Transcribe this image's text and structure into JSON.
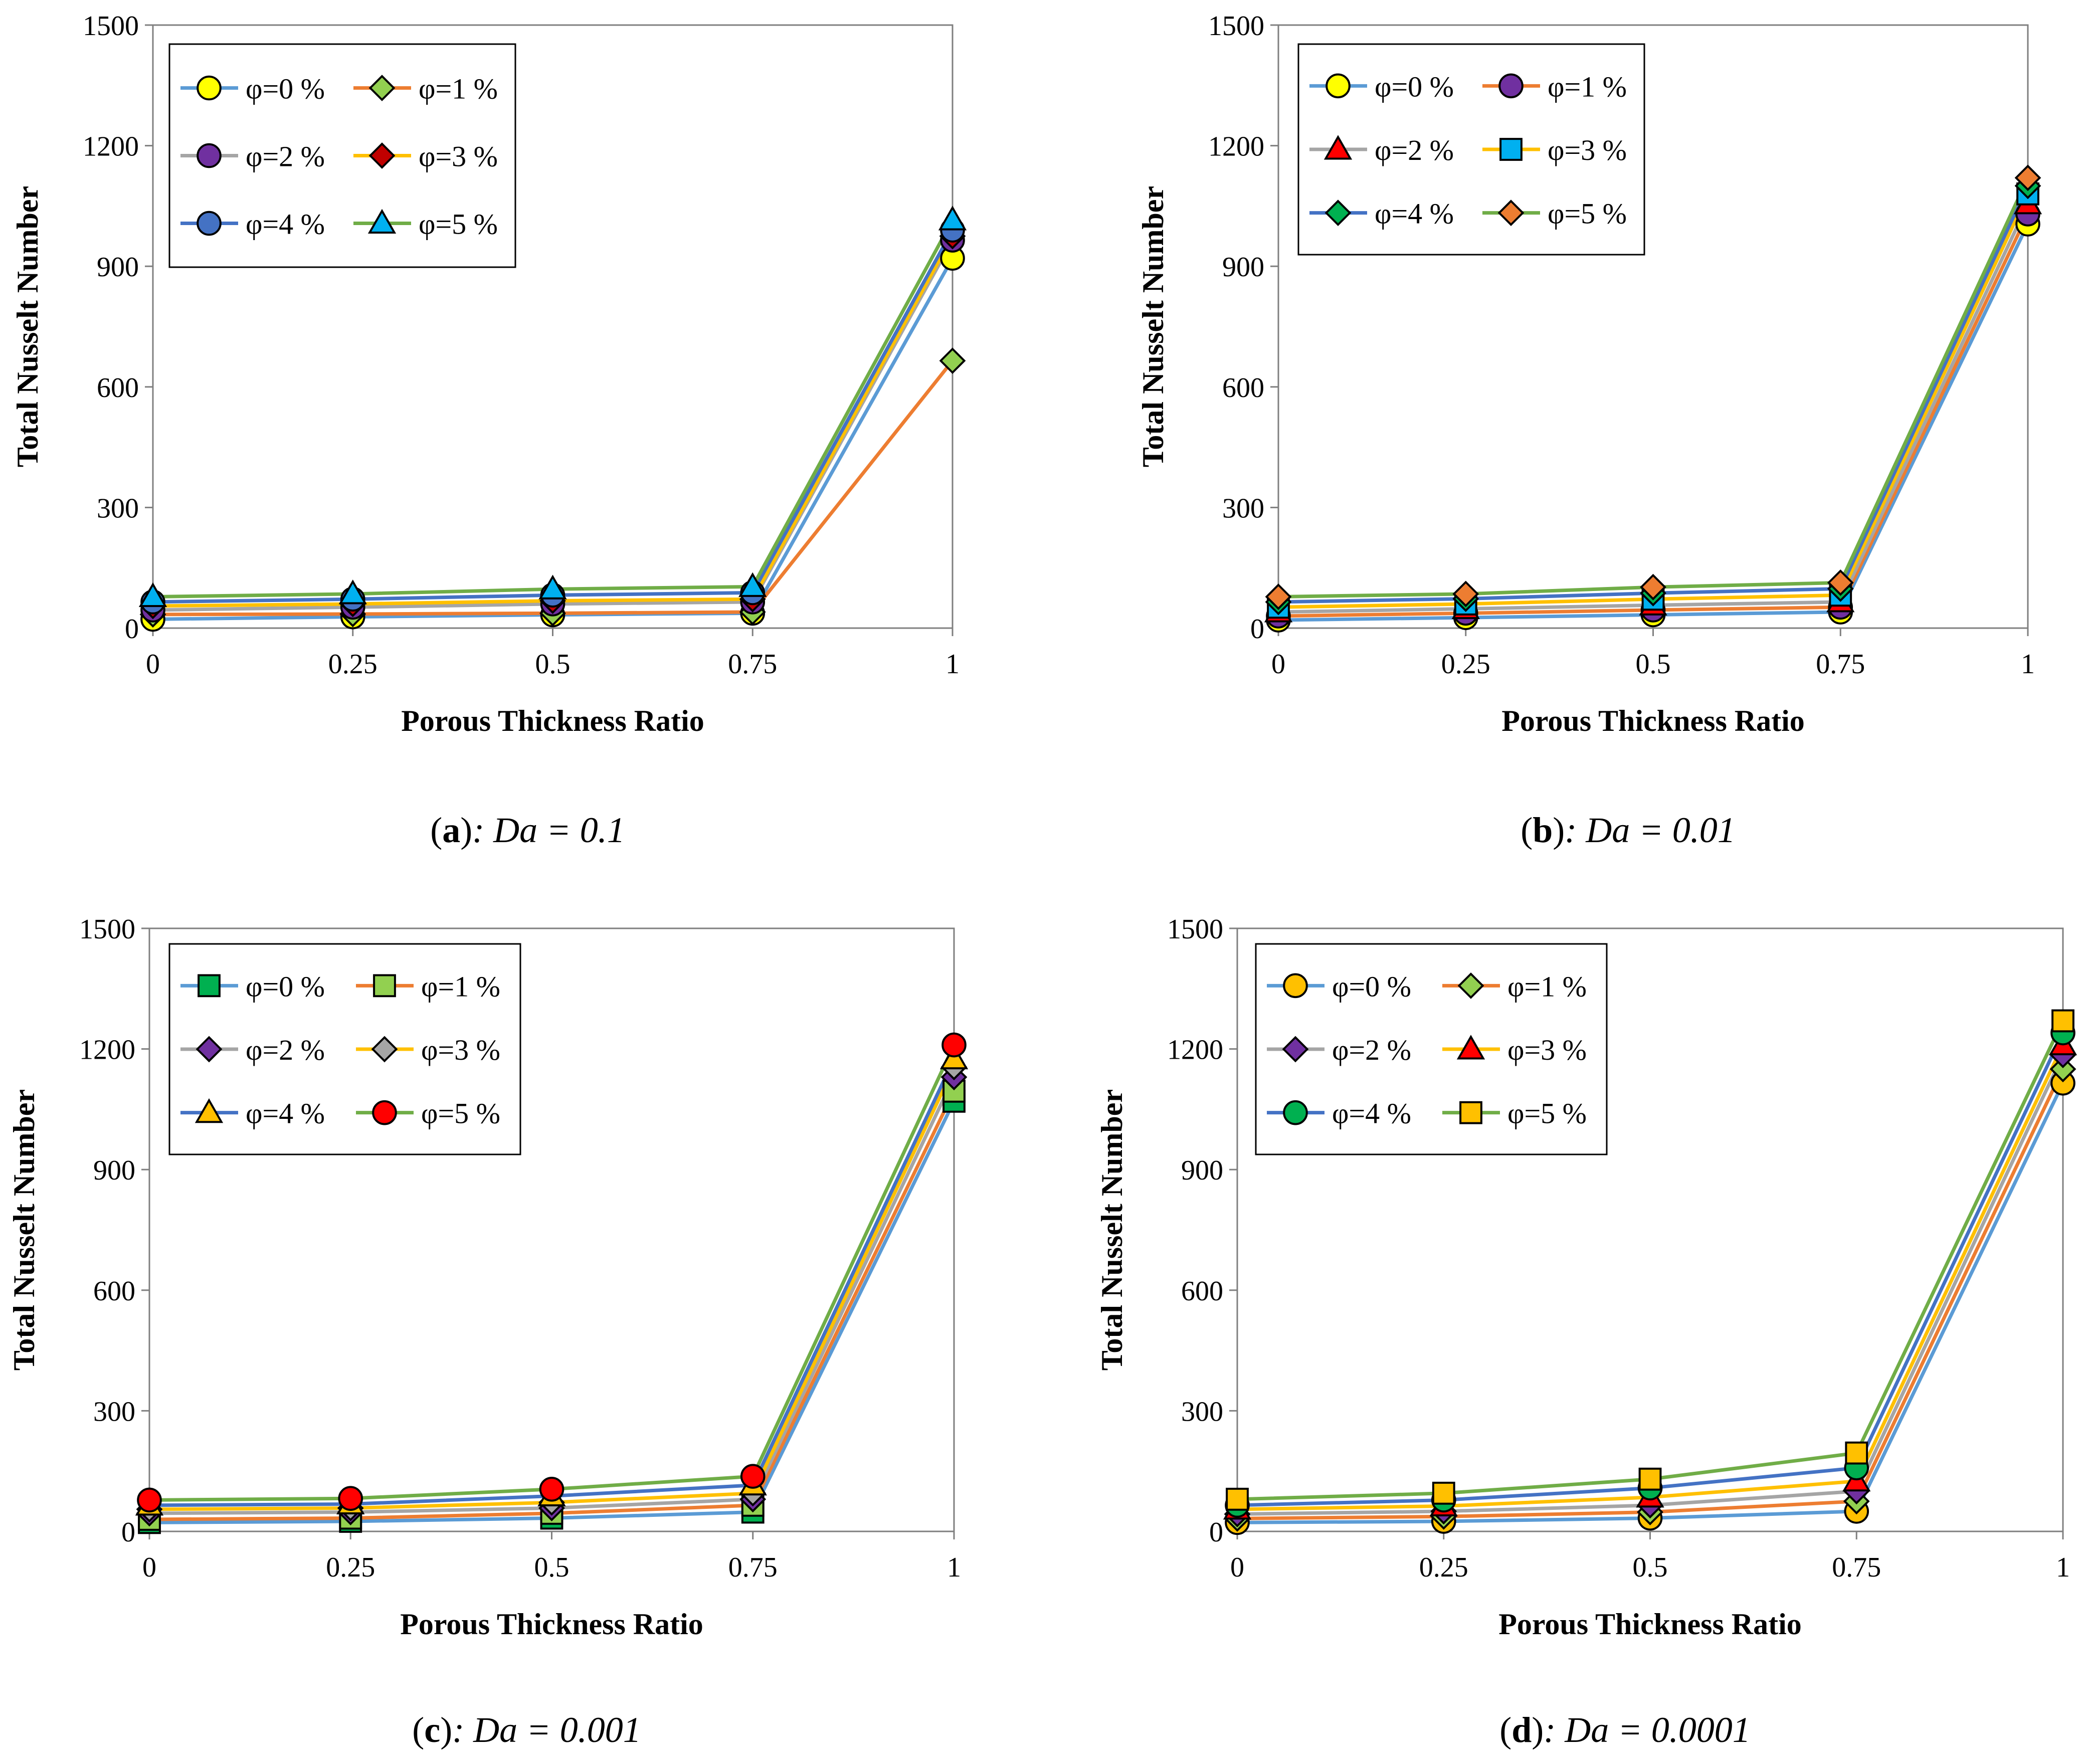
{
  "figure": {
    "panels": [
      {
        "letter": "a",
        "caption_rest": ": Da = 0.1"
      },
      {
        "letter": "b",
        "caption_rest": ": Da = 0.01"
      },
      {
        "letter": "c",
        "caption_rest": ": Da = 0.001"
      },
      {
        "letter": "d",
        "caption_rest": ": Da = 0.0001"
      }
    ]
  },
  "chart_data": [
    {
      "type": "line",
      "panel_id": "a",
      "caption": "(a): Da = 0.1",
      "xlabel": "Porous Thickness Ratio",
      "ylabel": "Total Nusselt Number",
      "x": [
        0,
        0.25,
        0.5,
        0.75,
        1
      ],
      "x_tick_labels": [
        "0",
        "0.25",
        "0.5",
        "0.75",
        "1"
      ],
      "y_ticks": [
        0,
        300,
        600,
        900,
        1200,
        1500
      ],
      "y_tick_labels": [
        "0",
        "300",
        "600",
        "900",
        "1200",
        "1500"
      ],
      "ylim": [
        0,
        1500
      ],
      "legend_position": "top-left",
      "series": [
        {
          "name": "φ=0 %",
          "line_color": "#5B9BD5",
          "marker": "circle",
          "marker_color": "#FFFF00",
          "values": [
            22,
            28,
            33,
            37,
            920
          ]
        },
        {
          "name": "φ=1 %",
          "line_color": "#ED7D31",
          "marker": "diamond",
          "marker_color": "#92D050",
          "values": [
            34,
            35,
            37,
            40,
            665
          ]
        },
        {
          "name": "φ=2 %",
          "line_color": "#A5A5A5",
          "marker": "circle",
          "marker_color": "#7030A0",
          "values": [
            45,
            52,
            60,
            65,
            965
          ]
        },
        {
          "name": "φ=3 %",
          "line_color": "#FFC000",
          "marker": "diamond",
          "marker_color": "#C00000",
          "values": [
            55,
            60,
            68,
            72,
            975
          ]
        },
        {
          "name": "φ=4 %",
          "line_color": "#4472C4",
          "marker": "circle",
          "marker_color": "#4472C4",
          "values": [
            65,
            72,
            82,
            88,
            990
          ]
        },
        {
          "name": "φ=5 %",
          "line_color": "#70AD47",
          "marker": "triangle",
          "marker_color": "#00B0F0",
          "values": [
            78,
            85,
            97,
            103,
            1015
          ]
        }
      ]
    },
    {
      "type": "line",
      "panel_id": "b",
      "caption": "(b): Da = 0.01",
      "xlabel": "Porous Thickness Ratio",
      "ylabel": "Total Nusselt Number",
      "x": [
        0,
        0.25,
        0.5,
        0.75,
        1
      ],
      "x_tick_labels": [
        "0",
        "0.25",
        "0.5",
        "0.75",
        "1"
      ],
      "y_ticks": [
        0,
        300,
        600,
        900,
        1200,
        1500
      ],
      "y_tick_labels": [
        "0",
        "300",
        "600",
        "900",
        "1200",
        "1500"
      ],
      "ylim": [
        0,
        1500
      ],
      "legend_position": "top-left",
      "series": [
        {
          "name": "φ=0 %",
          "line_color": "#5B9BD5",
          "marker": "circle",
          "marker_color": "#FFFF00",
          "values": [
            20,
            26,
            33,
            40,
            1005
          ]
        },
        {
          "name": "φ=1 %",
          "line_color": "#ED7D31",
          "marker": "circle",
          "marker_color": "#7030A0",
          "values": [
            30,
            37,
            45,
            52,
            1030
          ]
        },
        {
          "name": "φ=2 %",
          "line_color": "#A5A5A5",
          "marker": "triangle",
          "marker_color": "#FF0000",
          "values": [
            40,
            48,
            57,
            65,
            1055
          ]
        },
        {
          "name": "φ=3 %",
          "line_color": "#FFC000",
          "marker": "square",
          "marker_color": "#00B0F0",
          "values": [
            52,
            60,
            72,
            82,
            1080
          ]
        },
        {
          "name": "φ=4 %",
          "line_color": "#4472C4",
          "marker": "diamond",
          "marker_color": "#00B050",
          "values": [
            65,
            73,
            87,
            98,
            1100
          ]
        },
        {
          "name": "φ=5 %",
          "line_color": "#70AD47",
          "marker": "diamond",
          "marker_color": "#ED7D31",
          "values": [
            78,
            85,
            102,
            113,
            1120
          ]
        }
      ]
    },
    {
      "type": "line",
      "panel_id": "c",
      "caption": "(c): Da = 0.001",
      "xlabel": "Porous Thickness Ratio",
      "ylabel": "Total Nusselt Number",
      "x": [
        0,
        0.25,
        0.5,
        0.75,
        1
      ],
      "x_tick_labels": [
        "0",
        "0.25",
        "0.5",
        "0.75",
        "1"
      ],
      "y_ticks": [
        0,
        300,
        600,
        900,
        1200,
        1500
      ],
      "y_tick_labels": [
        "0",
        "300",
        "600",
        "900",
        "1200",
        "1500"
      ],
      "ylim": [
        0,
        1500
      ],
      "legend_position": "top-left",
      "series": [
        {
          "name": "φ=0 %",
          "line_color": "#5B9BD5",
          "marker": "square",
          "marker_color": "#00B050",
          "values": [
            22,
            25,
            33,
            48,
            1070
          ]
        },
        {
          "name": "φ=1 %",
          "line_color": "#ED7D31",
          "marker": "square",
          "marker_color": "#92D050",
          "values": [
            30,
            33,
            45,
            65,
            1095
          ]
        },
        {
          "name": "φ=2 %",
          "line_color": "#A5A5A5",
          "marker": "diamond",
          "marker_color": "#7030A0",
          "values": [
            45,
            48,
            58,
            80,
            1130
          ]
        },
        {
          "name": "φ=3 %",
          "line_color": "#FFC000",
          "marker": "diamond",
          "marker_color": "#A5A5A5",
          "values": [
            55,
            58,
            72,
            95,
            1155
          ]
        },
        {
          "name": "φ=4 %",
          "line_color": "#4472C4",
          "marker": "triangle",
          "marker_color": "#FFC000",
          "values": [
            65,
            68,
            88,
            115,
            1175
          ]
        },
        {
          "name": "φ=5 %",
          "line_color": "#70AD47",
          "marker": "circle",
          "marker_color": "#FF0000",
          "values": [
            78,
            82,
            105,
            137,
            1210
          ]
        }
      ]
    },
    {
      "type": "line",
      "panel_id": "d",
      "caption": "(d): Da = 0.0001",
      "xlabel": "Porous Thickness Ratio",
      "ylabel": "Total Nusselt Number",
      "x": [
        0,
        0.25,
        0.5,
        0.75,
        1
      ],
      "x_tick_labels": [
        "0",
        "0.25",
        "0.5",
        "0.75",
        "1"
      ],
      "y_ticks": [
        0,
        300,
        600,
        900,
        1200,
        1500
      ],
      "y_tick_labels": [
        "0",
        "300",
        "600",
        "900",
        "1200",
        "1500"
      ],
      "ylim": [
        0,
        1500
      ],
      "legend_position": "top-left",
      "series": [
        {
          "name": "φ=0 %",
          "line_color": "#5B9BD5",
          "marker": "circle",
          "marker_color": "#FFC000",
          "values": [
            22,
            25,
            33,
            50,
            1115
          ]
        },
        {
          "name": "φ=1 %",
          "line_color": "#ED7D31",
          "marker": "diamond",
          "marker_color": "#92D050",
          "values": [
            32,
            37,
            48,
            75,
            1150
          ]
        },
        {
          "name": "φ=2 %",
          "line_color": "#A5A5A5",
          "marker": "diamond",
          "marker_color": "#7030A0",
          "values": [
            43,
            50,
            65,
            100,
            1185
          ]
        },
        {
          "name": "φ=3 %",
          "line_color": "#FFC000",
          "marker": "triangle",
          "marker_color": "#FF0000",
          "values": [
            55,
            63,
            85,
            125,
            1210
          ]
        },
        {
          "name": "φ=4 %",
          "line_color": "#4472C4",
          "marker": "circle",
          "marker_color": "#00B050",
          "values": [
            65,
            78,
            108,
            158,
            1240
          ]
        },
        {
          "name": "φ=5 %",
          "line_color": "#70AD47",
          "marker": "square",
          "marker_color": "#FFC000",
          "values": [
            80,
            95,
            130,
            195,
            1270
          ]
        }
      ]
    }
  ]
}
